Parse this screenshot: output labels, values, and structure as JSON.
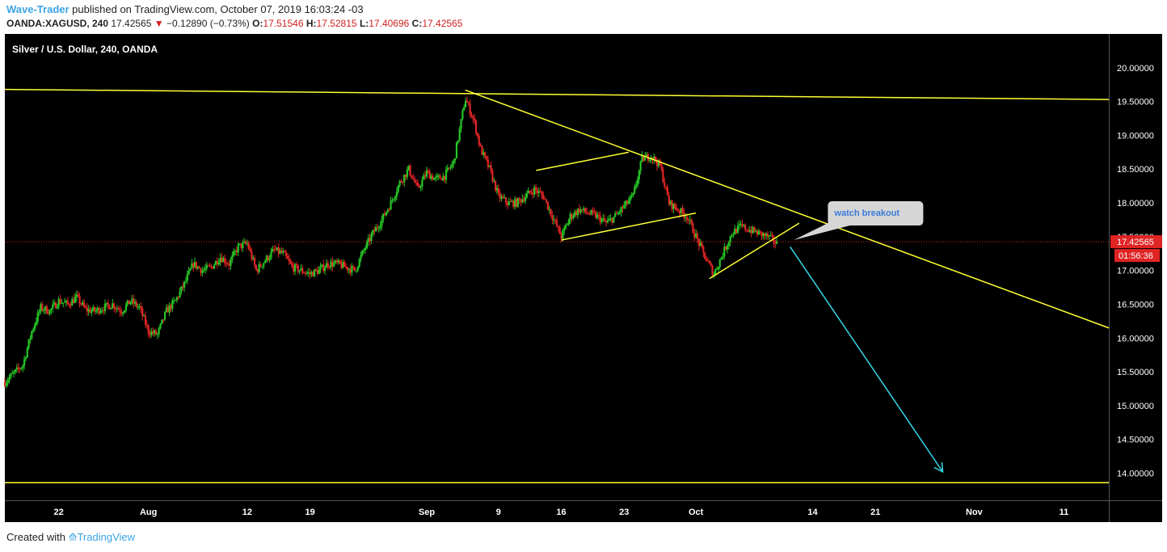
{
  "header": {
    "author": "Wave-Trader",
    "published_text": " published on TradingView.com, October 07, 2019 16:03:24 -03",
    "symbol": "OANDA:XAGUSD, 240",
    "price": "17.42565",
    "change": "−0.12890 (−0.73%)",
    "o_label": "O:",
    "o_value": "17.51546",
    "h_label": "H:",
    "h_value": "17.52815",
    "l_label": "L:",
    "l_value": "17.40696",
    "c_label": "C:",
    "c_value": "17.42565"
  },
  "footer": {
    "created_with": "Created with",
    "brand": "TradingView"
  },
  "colors": {
    "background": "#000000",
    "up": "#26c626",
    "down": "#e02424",
    "trendline": "#ffff33",
    "projection": "#33d8e8",
    "price_label_bg": "#e02424",
    "axis_text": "#ffffff",
    "callout_bg": "#d6d6d6",
    "callout_text": "#3b7bd8"
  },
  "chart_data": {
    "type": "candlestick",
    "title": "Silver / U.S. Dollar, 240, OANDA",
    "xlabel": "",
    "ylabel": "",
    "ylim": [
      13.6,
      20.5
    ],
    "y_ticks": [
      "14.00000",
      "14.50000",
      "15.00000",
      "15.50000",
      "16.00000",
      "16.50000",
      "17.00000",
      "17.50000",
      "18.00000",
      "18.50000",
      "19.00000",
      "19.50000",
      "20.00000"
    ],
    "x_ticks": [
      {
        "label": "22",
        "day": 0
      },
      {
        "label": "Aug",
        "day": 10
      },
      {
        "label": "12",
        "day": 21
      },
      {
        "label": "19",
        "day": 28
      },
      {
        "label": "Sep",
        "day": 41
      },
      {
        "label": "9",
        "day": 49
      },
      {
        "label": "16",
        "day": 56
      },
      {
        "label": "23",
        "day": 63
      },
      {
        "label": "Oct",
        "day": 71
      },
      {
        "label": "14",
        "day": 84
      },
      {
        "label": "21",
        "day": 91
      },
      {
        "label": "Nov",
        "day": 102
      },
      {
        "label": "11",
        "day": 112
      }
    ],
    "x_domain_days": [
      -6,
      117
    ],
    "anchor_closes": [
      [
        -6,
        15.35
      ],
      [
        -4,
        15.6
      ],
      [
        -3,
        16.1
      ],
      [
        -2,
        16.45
      ],
      [
        -1,
        16.4
      ],
      [
        0,
        16.55
      ],
      [
        1,
        16.5
      ],
      [
        2,
        16.6
      ],
      [
        3,
        16.42
      ],
      [
        4,
        16.4
      ],
      [
        5,
        16.45
      ],
      [
        6,
        16.5
      ],
      [
        7,
        16.4
      ],
      [
        8,
        16.55
      ],
      [
        9,
        16.45
      ],
      [
        10,
        16.1
      ],
      [
        11,
        16.05
      ],
      [
        12,
        16.4
      ],
      [
        13,
        16.55
      ],
      [
        14,
        16.8
      ],
      [
        15,
        17.1
      ],
      [
        16,
        17.0
      ],
      [
        17,
        17.05
      ],
      [
        18,
        17.2
      ],
      [
        19,
        17.1
      ],
      [
        20,
        17.35
      ],
      [
        21,
        17.4
      ],
      [
        22,
        17.0
      ],
      [
        23,
        17.15
      ],
      [
        24,
        17.3
      ],
      [
        25,
        17.25
      ],
      [
        26,
        17.05
      ],
      [
        27,
        17.0
      ],
      [
        28,
        16.95
      ],
      [
        29,
        17.0
      ],
      [
        30,
        17.1
      ],
      [
        31,
        17.1
      ],
      [
        32,
        17.05
      ],
      [
        33,
        17.0
      ],
      [
        34,
        17.3
      ],
      [
        35,
        17.55
      ],
      [
        36,
        17.75
      ],
      [
        37,
        18.0
      ],
      [
        38,
        18.3
      ],
      [
        39,
        18.5
      ],
      [
        40,
        18.2
      ],
      [
        41,
        18.45
      ],
      [
        42,
        18.35
      ],
      [
        43,
        18.4
      ],
      [
        44,
        18.6
      ],
      [
        44.7,
        19.1
      ],
      [
        45.3,
        19.55
      ],
      [
        46.3,
        19.2
      ],
      [
        47,
        18.8
      ],
      [
        48,
        18.5
      ],
      [
        49,
        18.1
      ],
      [
        50,
        18.0
      ],
      [
        51,
        18.0
      ],
      [
        52,
        18.1
      ],
      [
        53,
        18.2
      ],
      [
        54,
        18.1
      ],
      [
        55,
        17.8
      ],
      [
        56,
        17.5
      ],
      [
        57,
        17.8
      ],
      [
        58,
        17.9
      ],
      [
        59,
        17.85
      ],
      [
        60,
        17.8
      ],
      [
        61,
        17.7
      ],
      [
        62,
        17.8
      ],
      [
        63,
        17.95
      ],
      [
        64,
        18.1
      ],
      [
        65,
        18.65
      ],
      [
        66,
        18.7
      ],
      [
        67,
        18.55
      ],
      [
        68,
        18.0
      ],
      [
        69,
        17.9
      ],
      [
        70,
        17.8
      ],
      [
        71,
        17.5
      ],
      [
        72,
        17.2
      ],
      [
        73,
        16.95
      ],
      [
        74,
        17.25
      ],
      [
        75,
        17.55
      ],
      [
        76,
        17.65
      ],
      [
        77,
        17.6
      ],
      [
        78,
        17.55
      ],
      [
        79,
        17.5
      ],
      [
        80,
        17.4
      ]
    ],
    "last_price": "17.42565",
    "countdown": "01:56:36",
    "annotations": [
      {
        "type": "trendline",
        "name": "horizontal-resistance",
        "from": [
          -6,
          19.68
        ],
        "to": [
          117,
          19.53
        ]
      },
      {
        "type": "trendline",
        "name": "descending-resistance",
        "from": [
          45.3,
          19.67
        ],
        "to": [
          117,
          16.15
        ]
      },
      {
        "type": "trendline",
        "name": "channel-upper",
        "from": [
          53.2,
          18.48
        ],
        "to": [
          63.5,
          18.75
        ]
      },
      {
        "type": "trendline",
        "name": "channel-lower",
        "from": [
          56,
          17.45
        ],
        "to": [
          71,
          17.85
        ]
      },
      {
        "type": "trendline",
        "name": "wedge-lower",
        "from": [
          72.5,
          16.88
        ],
        "to": [
          82.5,
          17.7
        ]
      },
      {
        "type": "trendline",
        "name": "support-line",
        "from": [
          -6,
          13.86
        ],
        "to": [
          117,
          13.86
        ]
      },
      {
        "type": "arrow",
        "name": "projection-arrow",
        "from": [
          81.5,
          17.35
        ],
        "to": [
          98.5,
          14.02
        ]
      },
      {
        "type": "callout",
        "name": "watch-breakout",
        "text": "watch breakout",
        "box": [
          85.7,
          18.0
        ],
        "pointer": [
          81.9,
          17.45
        ]
      }
    ]
  }
}
